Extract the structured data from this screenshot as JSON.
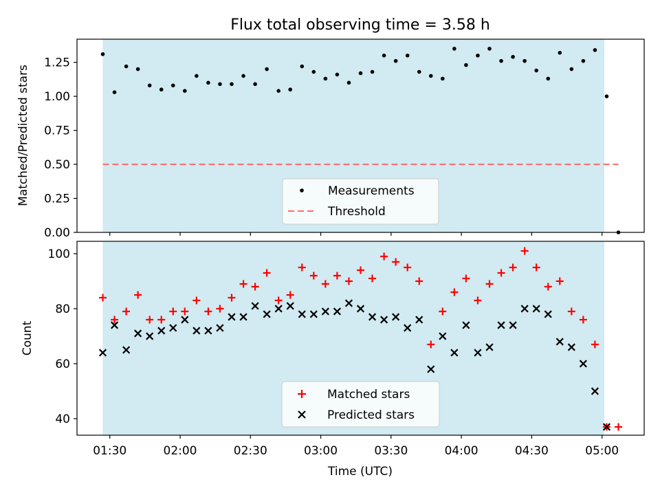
{
  "chart_data": [
    {
      "type": "scatter",
      "title": "Flux total observing time = 3.58 h",
      "xlabel": "",
      "ylabel": "Matched/Predicted stars",
      "ylim": [
        0,
        1.42
      ],
      "yticks": [
        "0.00",
        "0.25",
        "0.50",
        "0.75",
        "1.00",
        "1.25"
      ],
      "shaded_span": [
        "01:27",
        "05:01"
      ],
      "shade_color": "#add8e6",
      "threshold": 0.5,
      "threshold_color": "#ff6b6b",
      "point_color": "#000000",
      "legend": [
        {
          "label": "Measurements",
          "marker": "dot"
        },
        {
          "label": "Threshold",
          "marker": "dashed-line"
        }
      ],
      "legend_position": "lower center",
      "series": [
        {
          "name": "Measurements",
          "x": [
            "01:27",
            "01:32",
            "01:37",
            "01:42",
            "01:47",
            "01:52",
            "01:57",
            "02:02",
            "02:07",
            "02:12",
            "02:17",
            "02:22",
            "02:27",
            "02:32",
            "02:37",
            "02:42",
            "02:47",
            "02:52",
            "02:57",
            "03:02",
            "03:07",
            "03:12",
            "03:17",
            "03:22",
            "03:27",
            "03:32",
            "03:37",
            "03:42",
            "03:47",
            "03:52",
            "03:57",
            "04:02",
            "04:07",
            "04:12",
            "04:17",
            "04:22",
            "04:27",
            "04:32",
            "04:37",
            "04:42",
            "04:47",
            "04:52",
            "04:57",
            "05:02",
            "05:07"
          ],
          "values": [
            1.31,
            1.03,
            1.22,
            1.2,
            1.08,
            1.05,
            1.08,
            1.04,
            1.15,
            1.1,
            1.09,
            1.09,
            1.15,
            1.09,
            1.2,
            1.04,
            1.05,
            1.22,
            1.18,
            1.13,
            1.16,
            1.1,
            1.17,
            1.18,
            1.3,
            1.26,
            1.3,
            1.18,
            1.15,
            1.13,
            1.35,
            1.23,
            1.3,
            1.35,
            1.26,
            1.29,
            1.26,
            1.19,
            1.13,
            1.32,
            1.2,
            1.26,
            1.34,
            1.0,
            0.0
          ]
        }
      ]
    },
    {
      "type": "scatter",
      "xlabel": "Time (UTC)",
      "ylabel": "Count",
      "ylim": [
        34,
        104.5
      ],
      "yticks": [
        "40",
        "60",
        "80",
        "100"
      ],
      "xticks": [
        "01:30",
        "02:00",
        "02:30",
        "03:00",
        "03:30",
        "04:00",
        "04:30",
        "05:00"
      ],
      "xlim": [
        "01:16",
        "05:18"
      ],
      "shaded_span": [
        "01:27",
        "05:01"
      ],
      "shade_color": "#add8e6",
      "legend": [
        {
          "label": "Matched stars",
          "marker": "plus",
          "color": "#ff0000"
        },
        {
          "label": "Predicted stars",
          "marker": "x",
          "color": "#000000"
        }
      ],
      "legend_position": "lower center",
      "x": [
        "01:27",
        "01:32",
        "01:37",
        "01:42",
        "01:47",
        "01:52",
        "01:57",
        "02:02",
        "02:07",
        "02:12",
        "02:17",
        "02:22",
        "02:27",
        "02:32",
        "02:37",
        "02:42",
        "02:47",
        "02:52",
        "02:57",
        "03:02",
        "03:07",
        "03:12",
        "03:17",
        "03:22",
        "03:27",
        "03:32",
        "03:37",
        "03:42",
        "03:47",
        "03:52",
        "03:57",
        "04:02",
        "04:07",
        "04:12",
        "04:17",
        "04:22",
        "04:27",
        "04:32",
        "04:37",
        "04:42",
        "04:47",
        "04:52",
        "04:57",
        "05:02",
        "05:07"
      ],
      "series": [
        {
          "name": "Matched stars",
          "marker": "plus",
          "color": "#ff0000",
          "values": [
            84,
            76,
            79,
            85,
            76,
            76,
            79,
            79,
            83,
            79,
            80,
            84,
            89,
            88,
            93,
            83,
            85,
            95,
            92,
            89,
            92,
            90,
            94,
            91,
            99,
            97,
            95,
            90,
            67,
            79,
            86,
            91,
            83,
            89,
            93,
            95,
            101,
            95,
            88,
            90,
            79,
            76,
            67,
            37,
            37
          ]
        },
        {
          "name": "Predicted stars",
          "marker": "x",
          "color": "#000000",
          "values": [
            64,
            74,
            65,
            71,
            70,
            72,
            73,
            76,
            72,
            72,
            73,
            77,
            77,
            81,
            78,
            80,
            81,
            78,
            78,
            79,
            79,
            82,
            80,
            77,
            76,
            77,
            73,
            76,
            58,
            70,
            64,
            74,
            64,
            66,
            74,
            74,
            80,
            80,
            78,
            68,
            66,
            60,
            50,
            37,
            null
          ]
        }
      ]
    }
  ]
}
